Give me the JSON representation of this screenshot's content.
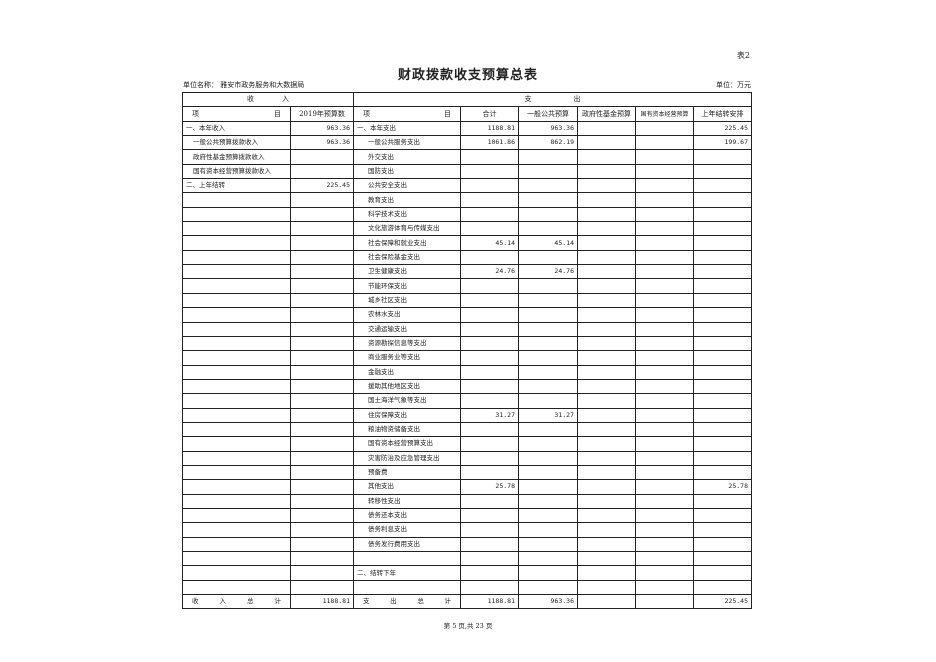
{
  "table_tag": "表2",
  "title": "财政拨款收支预算总表",
  "unit_name": "单位名称：  雅安市政务服务和大数据局",
  "unit": "单位：万元",
  "headers": {
    "income": "收　　　　入",
    "expense": "支　　　　　　出",
    "item_l": [
      "项",
      "目"
    ],
    "budget_2019": "2019年预算数",
    "item_r": [
      "项",
      "目"
    ],
    "total": "合计",
    "general": "一般公共预算",
    "gov_fund": "政府性基金预算",
    "state_capital": "国有资本经营预算",
    "carryover": "上年结转安排"
  },
  "rows": [
    [
      "一、本年收入",
      "963.36",
      "一、本年支出",
      "1188.81",
      "963.36",
      "",
      "",
      "225.45"
    ],
    [
      "一般公共预算拨款收入",
      "963.36",
      "一般公共服务支出",
      "1061.86",
      "862.19",
      "",
      "",
      "199.67"
    ],
    [
      "政府性基金预算拨款收入",
      "",
      "外交支出",
      "",
      "",
      "",
      "",
      ""
    ],
    [
      "国有资本经营预算拨款收入",
      "",
      "国防支出",
      "",
      "",
      "",
      "",
      ""
    ],
    [
      "二、上年结转",
      "225.45",
      "公共安全支出",
      "",
      "",
      "",
      "",
      ""
    ],
    [
      "",
      "",
      "教育支出",
      "",
      "",
      "",
      "",
      ""
    ],
    [
      "",
      "",
      "科学技术支出",
      "",
      "",
      "",
      "",
      ""
    ],
    [
      "",
      "",
      "文化旅游体育与传媒支出",
      "",
      "",
      "",
      "",
      ""
    ],
    [
      "",
      "",
      "社会保障和就业支出",
      "45.14",
      "45.14",
      "",
      "",
      ""
    ],
    [
      "",
      "",
      "社会保险基金支出",
      "",
      "",
      "",
      "",
      ""
    ],
    [
      "",
      "",
      "卫生健康支出",
      "24.76",
      "24.76",
      "",
      "",
      ""
    ],
    [
      "",
      "",
      "节能环保支出",
      "",
      "",
      "",
      "",
      ""
    ],
    [
      "",
      "",
      "城乡社区支出",
      "",
      "",
      "",
      "",
      ""
    ],
    [
      "",
      "",
      "农林水支出",
      "",
      "",
      "",
      "",
      ""
    ],
    [
      "",
      "",
      "交通运输支出",
      "",
      "",
      "",
      "",
      ""
    ],
    [
      "",
      "",
      "资源勘探信息等支出",
      "",
      "",
      "",
      "",
      ""
    ],
    [
      "",
      "",
      "商业服务业等支出",
      "",
      "",
      "",
      "",
      ""
    ],
    [
      "",
      "",
      "金融支出",
      "",
      "",
      "",
      "",
      ""
    ],
    [
      "",
      "",
      "援助其他地区支出",
      "",
      "",
      "",
      "",
      ""
    ],
    [
      "",
      "",
      "国土海洋气象等支出",
      "",
      "",
      "",
      "",
      ""
    ],
    [
      "",
      "",
      "住房保障支出",
      "31.27",
      "31.27",
      "",
      "",
      ""
    ],
    [
      "",
      "",
      "粮油物资储备支出",
      "",
      "",
      "",
      "",
      ""
    ],
    [
      "",
      "",
      "国有资本经营预算支出",
      "",
      "",
      "",
      "",
      ""
    ],
    [
      "",
      "",
      "灾害防治及应急管理支出",
      "",
      "",
      "",
      "",
      ""
    ],
    [
      "",
      "",
      "预备费",
      "",
      "",
      "",
      "",
      ""
    ],
    [
      "",
      "",
      "其他支出",
      "25.78",
      "",
      "",
      "",
      "25.78"
    ],
    [
      "",
      "",
      "转移性支出",
      "",
      "",
      "",
      "",
      ""
    ],
    [
      "",
      "",
      "债务还本支出",
      "",
      "",
      "",
      "",
      ""
    ],
    [
      "",
      "",
      "债务利息支出",
      "",
      "",
      "",
      "",
      ""
    ],
    [
      "",
      "",
      "债务发行费用支出",
      "",
      "",
      "",
      "",
      ""
    ],
    [
      "",
      "",
      "",
      "",
      "",
      "",
      "",
      ""
    ],
    [
      "",
      "",
      "二、结转下年",
      "",
      "",
      "",
      "",
      ""
    ],
    [
      "",
      "",
      "",
      "",
      "",
      "",
      "",
      ""
    ]
  ],
  "totals": {
    "income_label": [
      "收",
      "入",
      "总",
      "计"
    ],
    "income_total": "1188.81",
    "expense_label": [
      "支",
      "出",
      "总",
      "计"
    ],
    "values": [
      "1188.81",
      "963.36",
      "",
      "",
      "225.45"
    ]
  },
  "footer": "第 5 页,共 23 页"
}
